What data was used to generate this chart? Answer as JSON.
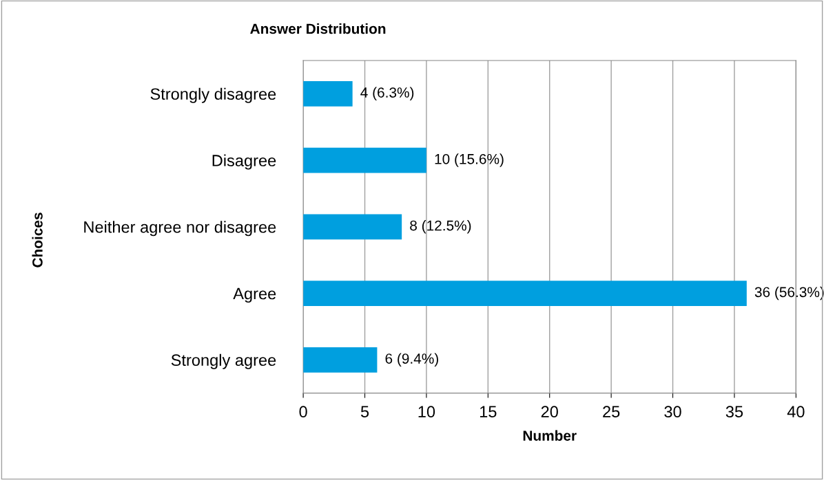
{
  "chart_data": {
    "type": "bar",
    "orientation": "horizontal",
    "title": "Answer Distribution",
    "xlabel": "Number",
    "ylabel": "Choices",
    "categories": [
      "Strongly disagree",
      "Disagree",
      "Neither agree nor disagree",
      "Agree",
      "Strongly agree"
    ],
    "values": [
      4,
      10,
      8,
      36,
      6
    ],
    "value_labels": [
      "4 (6.3%)",
      "10 (15.6%)",
      "8 (12.5%)",
      "36 (56.3%)",
      "6 (9.4%)"
    ],
    "color": "#009fdf",
    "xlim": [
      0,
      40
    ],
    "xticks": [
      0,
      5,
      10,
      15,
      20,
      25,
      30,
      35,
      40
    ],
    "grid": "x",
    "legend": false
  }
}
